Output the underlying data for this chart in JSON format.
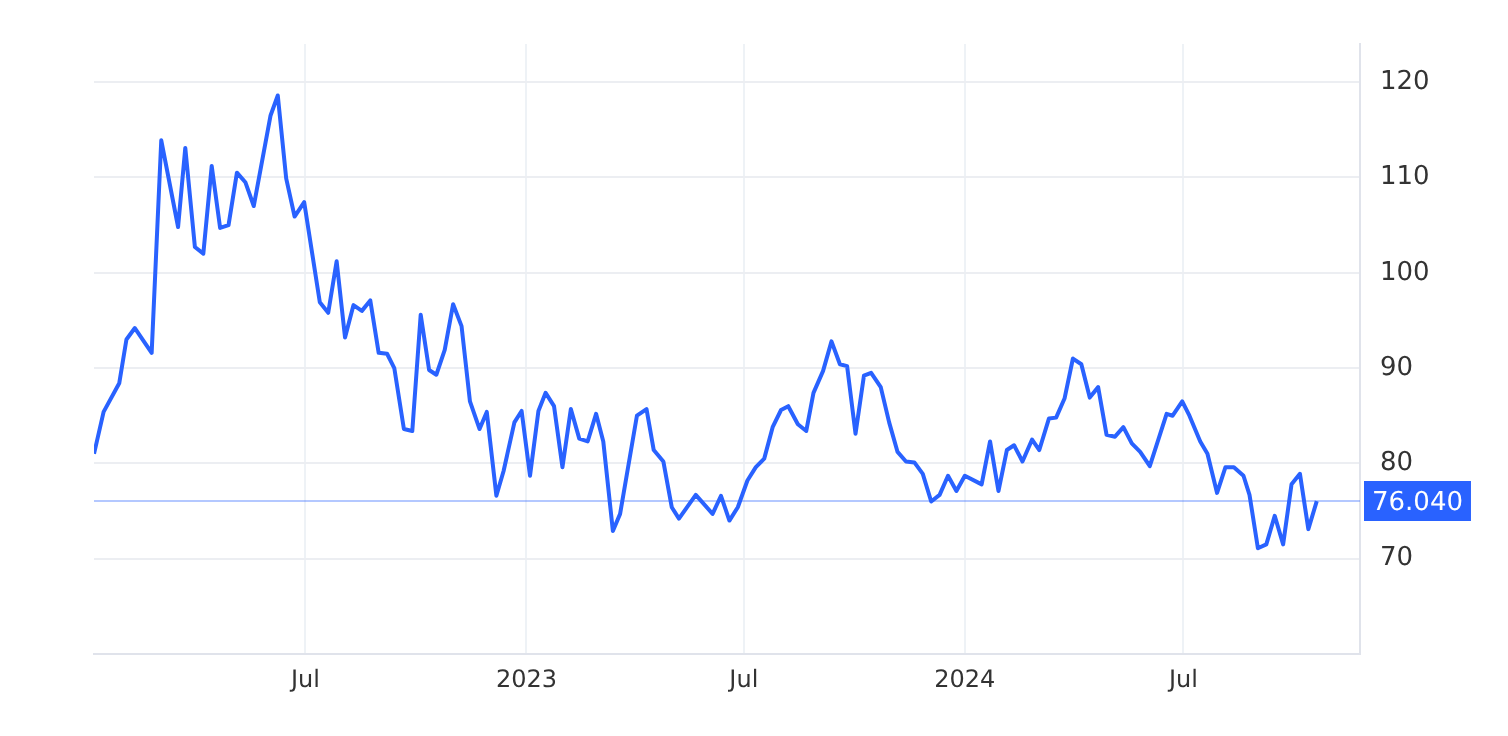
{
  "chart_data": {
    "type": "line",
    "x": [
      "2022-01-06",
      "2022-01-14",
      "2022-01-27",
      "2022-02-02",
      "2022-02-09",
      "2022-02-23",
      "2022-03-03",
      "2022-03-17",
      "2022-03-23",
      "2022-03-31",
      "2022-04-07",
      "2022-04-14",
      "2022-04-21",
      "2022-04-28",
      "2022-05-05",
      "2022-05-12",
      "2022-05-19",
      "2022-06-02",
      "2022-06-08",
      "2022-06-15",
      "2022-06-22",
      "2022-06-30",
      "2022-07-13",
      "2022-07-20",
      "2022-07-27",
      "2022-08-03",
      "2022-08-10",
      "2022-08-17",
      "2022-08-24",
      "2022-08-31",
      "2022-09-07",
      "2022-09-13",
      "2022-09-21",
      "2022-09-28",
      "2022-10-05",
      "2022-10-12",
      "2022-10-18",
      "2022-10-25",
      "2022-11-01",
      "2022-11-08",
      "2022-11-15",
      "2022-11-23",
      "2022-11-29",
      "2022-12-07",
      "2022-12-13",
      "2022-12-22",
      "2022-12-28",
      "2023-01-04",
      "2023-01-11",
      "2023-01-17",
      "2023-01-24",
      "2023-01-31",
      "2023-02-07",
      "2023-02-14",
      "2023-02-21",
      "2023-02-28",
      "2023-03-06",
      "2023-03-14",
      "2023-03-20",
      "2023-04-03",
      "2023-04-11",
      "2023-04-17",
      "2023-04-25",
      "2023-05-02",
      "2023-05-08",
      "2023-05-22",
      "2023-06-05",
      "2023-06-12",
      "2023-06-19",
      "2023-06-26",
      "2023-07-04",
      "2023-07-11",
      "2023-07-18",
      "2023-07-25",
      "2023-08-01",
      "2023-08-07",
      "2023-08-15",
      "2023-08-22",
      "2023-08-28",
      "2023-09-05",
      "2023-09-12",
      "2023-09-19",
      "2023-09-25",
      "2023-10-02",
      "2023-10-09",
      "2023-10-15",
      "2023-10-23",
      "2023-10-30",
      "2023-11-06",
      "2023-11-13",
      "2023-11-20",
      "2023-11-27",
      "2023-12-04",
      "2023-12-11",
      "2023-12-18",
      "2023-12-25",
      "2024-01-01",
      "2024-01-15",
      "2024-01-22",
      "2024-01-29",
      "2024-02-05",
      "2024-02-11",
      "2024-02-18",
      "2024-02-26",
      "2024-03-03",
      "2024-03-11",
      "2024-03-17",
      "2024-03-24",
      "2024-03-31",
      "2024-04-07",
      "2024-04-14",
      "2024-04-21",
      "2024-04-28",
      "2024-05-05",
      "2024-05-12",
      "2024-05-19",
      "2024-05-26",
      "2024-06-03",
      "2024-06-17",
      "2024-06-22",
      "2024-06-30",
      "2024-07-06",
      "2024-07-15",
      "2024-07-21",
      "2024-07-29",
      "2024-08-05",
      "2024-08-12",
      "2024-08-20",
      "2024-08-25",
      "2024-09-01",
      "2024-09-08",
      "2024-09-15",
      "2024-09-22",
      "2024-09-29",
      "2024-10-06",
      "2024-10-13",
      "2024-10-20"
    ],
    "series": [
      {
        "color": "#2962ff",
        "values": [
          81.0,
          85.4,
          88.4,
          93.0,
          94.2,
          91.6,
          113.9,
          104.8,
          113.1,
          102.7,
          102.0,
          111.2,
          104.7,
          105.0,
          110.5,
          109.5,
          107.0,
          116.5,
          118.6,
          109.9,
          105.9,
          107.4,
          96.9,
          95.8,
          101.2,
          93.2,
          96.6,
          96.0,
          97.1,
          91.6,
          91.5,
          90.0,
          83.6,
          83.4,
          95.6,
          89.8,
          89.3,
          91.9,
          96.7,
          94.4,
          86.5,
          83.6,
          85.4,
          76.6,
          79.2,
          84.3,
          85.5,
          78.7,
          85.5,
          87.4,
          86.0,
          79.6,
          85.7,
          82.6,
          82.3,
          85.2,
          82.3,
          72.9,
          74.7,
          85.0,
          85.7,
          81.4,
          80.2,
          75.4,
          74.2,
          76.7,
          74.7,
          76.6,
          74.0,
          75.4,
          78.2,
          79.6,
          80.5,
          83.8,
          85.6,
          86.0,
          84.1,
          83.4,
          87.4,
          89.7,
          92.8,
          90.4,
          90.2,
          83.1,
          89.2,
          89.5,
          88.0,
          84.3,
          81.2,
          80.2,
          80.1,
          78.9,
          76.0,
          76.7,
          78.7,
          77.1,
          78.7,
          77.8,
          82.3,
          77.1,
          81.4,
          81.9,
          80.2,
          82.5,
          81.4,
          84.7,
          84.8,
          86.8,
          91.0,
          90.4,
          86.9,
          88.0,
          83.0,
          82.8,
          83.8,
          82.1,
          81.2,
          79.7,
          85.2,
          85.0,
          86.5,
          85.0,
          82.3,
          81.0,
          76.9,
          79.6,
          79.6,
          78.7,
          76.7,
          71.1,
          71.5,
          74.5,
          71.5,
          77.8,
          78.9,
          73.1,
          76.04
        ]
      }
    ],
    "xlim": [
      "2022-01-06",
      "2024-11-25"
    ],
    "xticks": [
      {
        "value": "2022-07-01",
        "label": "Jul"
      },
      {
        "value": "2023-01-01",
        "label": "2023"
      },
      {
        "value": "2023-07-01",
        "label": "Jul"
      },
      {
        "value": "2024-01-01",
        "label": "2024"
      },
      {
        "value": "2024-07-01",
        "label": "Jul"
      }
    ],
    "ylim": [
      60,
      124
    ],
    "yticks": [
      70,
      80,
      90,
      100,
      110,
      120
    ],
    "ref_lines": [
      {
        "axis": "y",
        "value": 76.04,
        "label": "76.040",
        "color": "#2962ff"
      }
    ],
    "grid": true,
    "legend": false,
    "marker": "none",
    "line_style": "solid"
  }
}
